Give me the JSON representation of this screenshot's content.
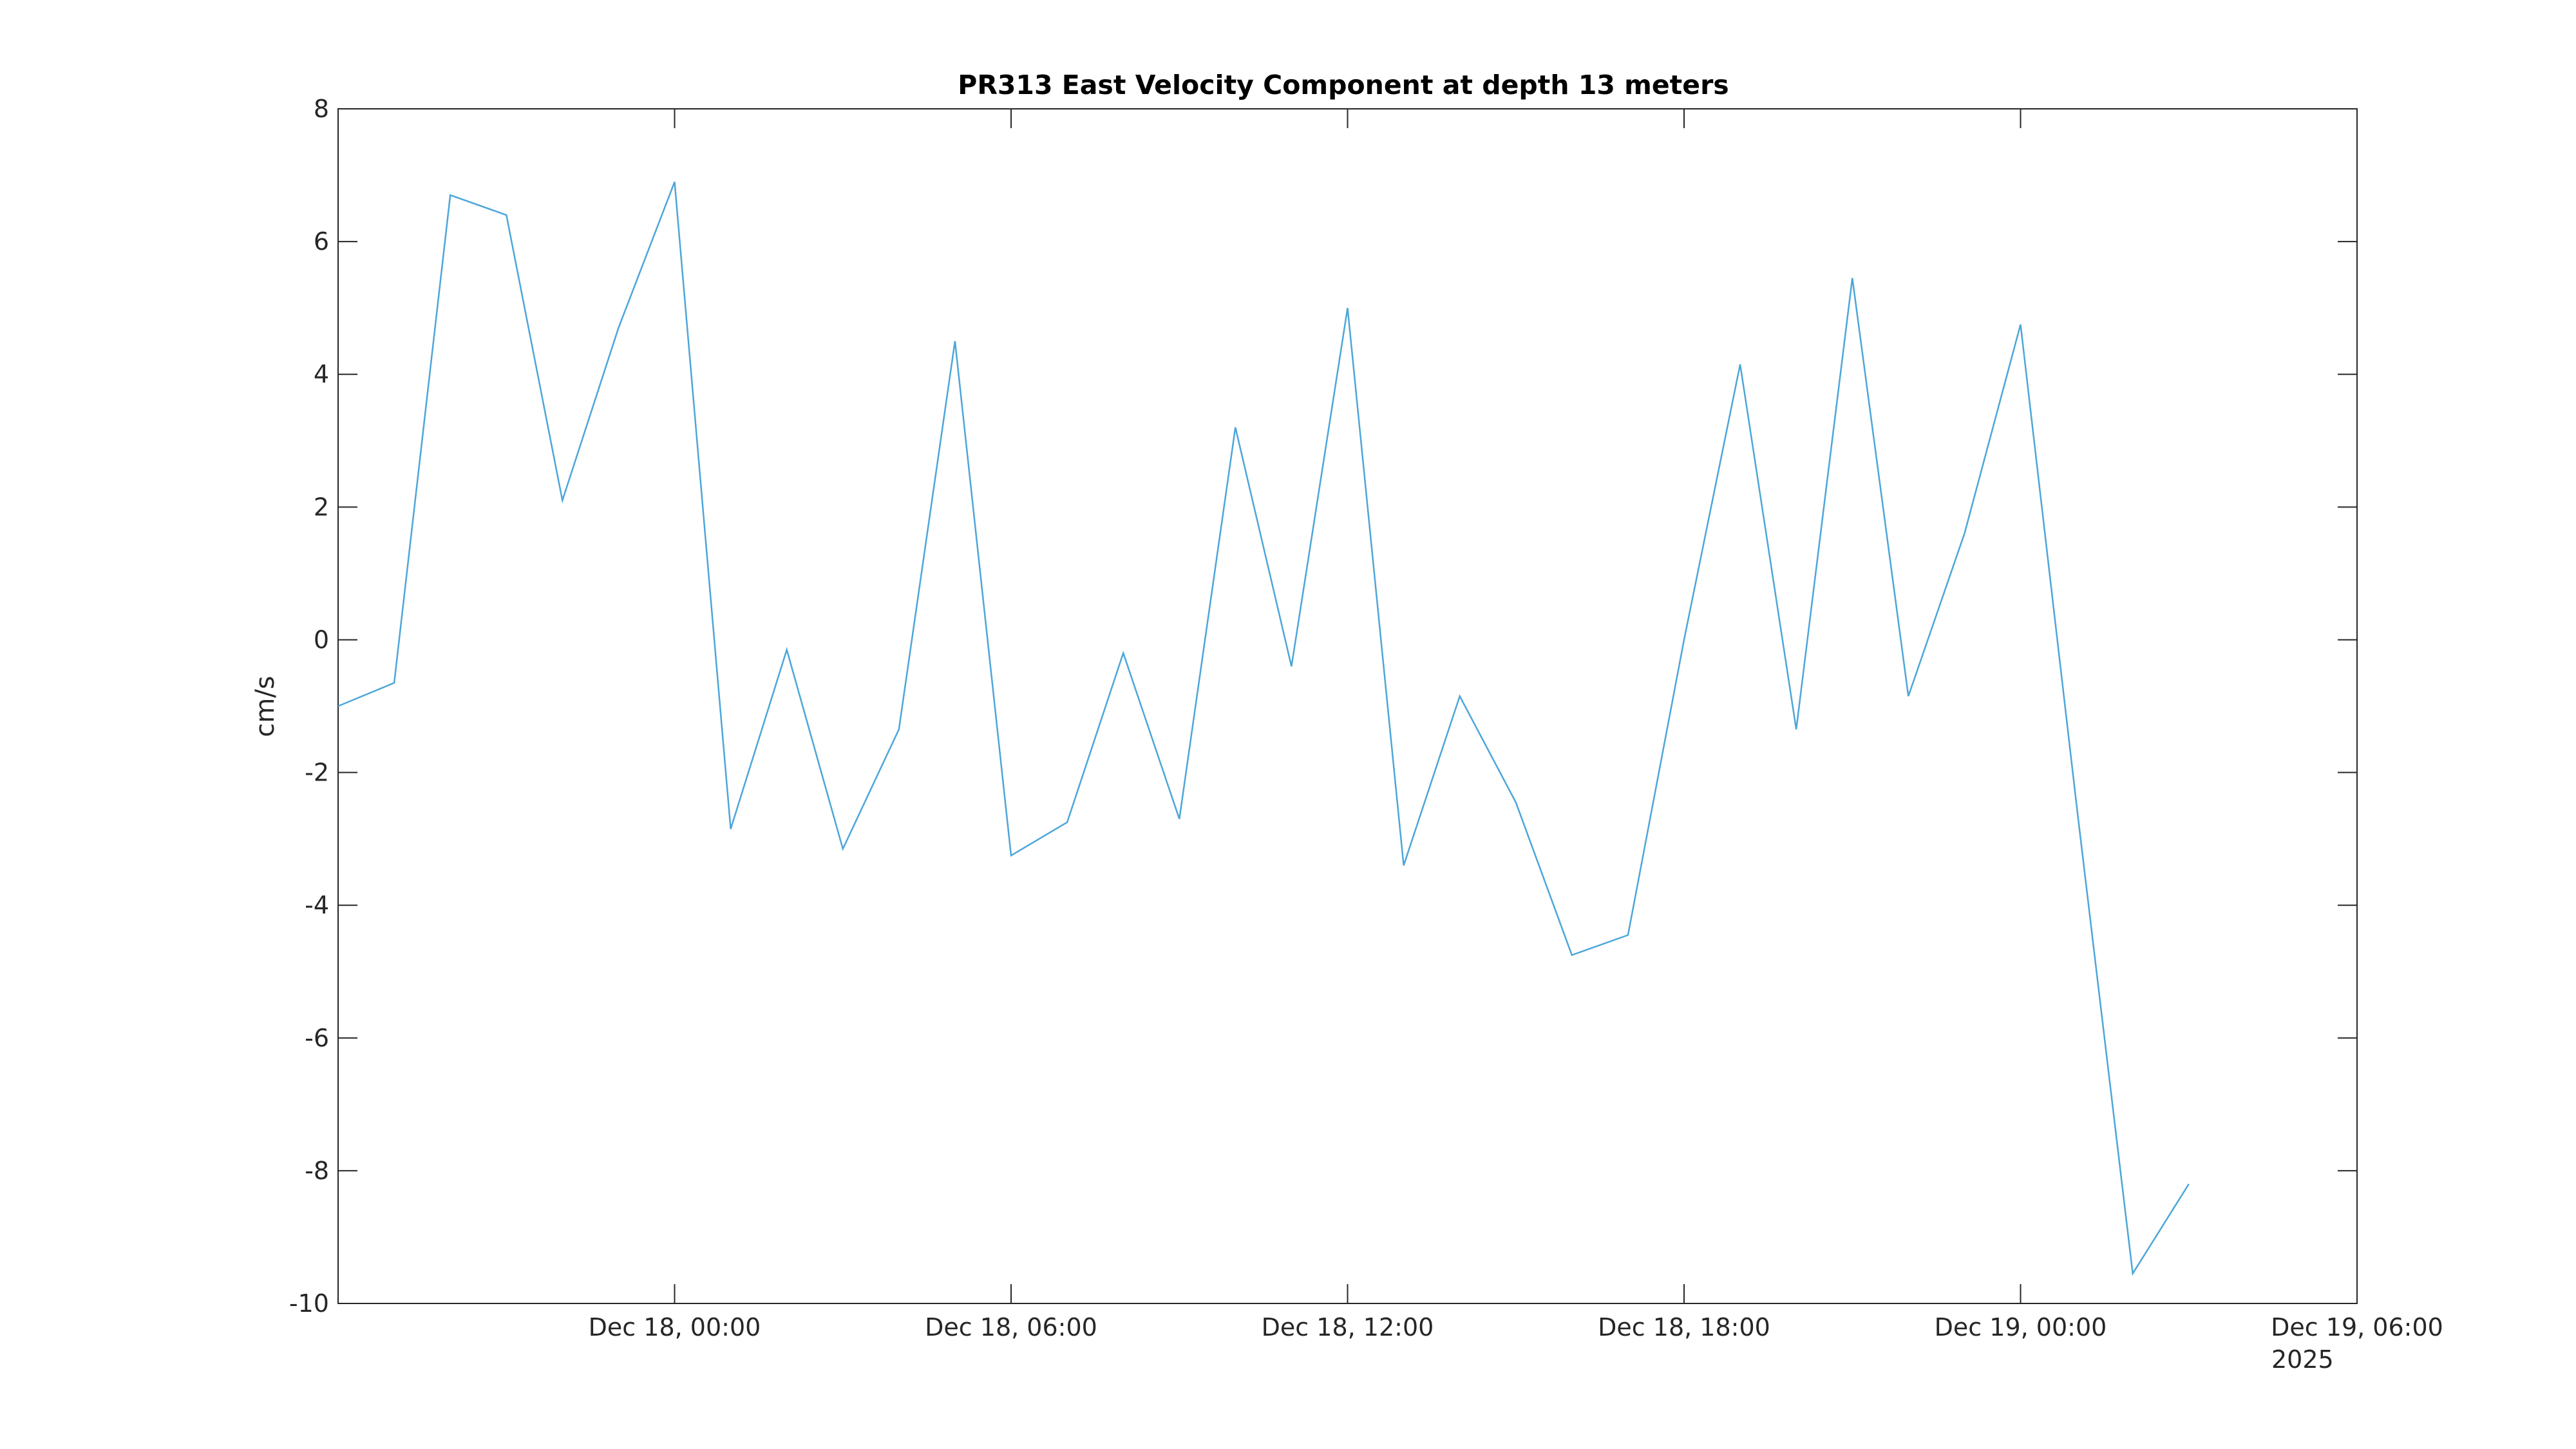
{
  "chart_data": {
    "type": "line",
    "title": "PR313 East Velocity Component at depth 13 meters",
    "xlabel": "",
    "ylabel": "cm/s",
    "ylim": [
      -10,
      8
    ],
    "yticks": [
      "8",
      "6",
      "4",
      "2",
      "0",
      "-2",
      "-4",
      "-6",
      "-8",
      "-10"
    ],
    "xlim": [
      "2025-12-17 18:00",
      "2025-12-19 06:00"
    ],
    "xticks": [
      {
        "x": "2025-12-18 00:00",
        "label": "Dec 18, 00:00"
      },
      {
        "x": "2025-12-18 06:00",
        "label": "Dec 18, 06:00"
      },
      {
        "x": "2025-12-18 12:00",
        "label": "Dec 18, 12:00"
      },
      {
        "x": "2025-12-18 18:00",
        "label": "Dec 18, 18:00"
      },
      {
        "x": "2025-12-19 00:00",
        "label": "Dec 19, 00:00"
      },
      {
        "x": "2025-12-19 06:00",
        "label": "Dec 19, 06:00"
      }
    ],
    "year_label": "2025",
    "grid": false,
    "series": [
      {
        "color": "#4DA6D9",
        "x": [
          "2025-12-17 18:00",
          "2025-12-17 19:00",
          "2025-12-17 20:00",
          "2025-12-17 21:00",
          "2025-12-17 22:00",
          "2025-12-17 23:00",
          "2025-12-18 00:00",
          "2025-12-18 01:00",
          "2025-12-18 02:00",
          "2025-12-18 03:00",
          "2025-12-18 04:00",
          "2025-12-18 05:00",
          "2025-12-18 06:00",
          "2025-12-18 07:00",
          "2025-12-18 08:00",
          "2025-12-18 09:00",
          "2025-12-18 10:00",
          "2025-12-18 11:00",
          "2025-12-18 12:00",
          "2025-12-18 13:00",
          "2025-12-18 14:00",
          "2025-12-18 15:00",
          "2025-12-18 16:00",
          "2025-12-18 17:00",
          "2025-12-18 18:00",
          "2025-12-18 19:00",
          "2025-12-18 20:00",
          "2025-12-18 21:00",
          "2025-12-18 22:00",
          "2025-12-18 23:00",
          "2025-12-19 00:00",
          "2025-12-19 01:00",
          "2025-12-19 02:00",
          "2025-12-19 03:00",
          "2025-12-19 04:00",
          "2025-12-19 05:00",
          "2025-12-19 06:00"
        ],
        "y": [
          -1.0,
          -0.65,
          6.7,
          6.4,
          2.1,
          4.7,
          6.9,
          -2.85,
          -0.15,
          -3.15,
          -1.35,
          4.5,
          -3.25,
          -2.75,
          -0.2,
          -2.7,
          3.2,
          -0.4,
          5.0,
          -3.4,
          -0.85,
          -2.45,
          -4.75,
          -4.45,
          0.0,
          4.15,
          -1.35,
          5.45,
          -0.85,
          1.6,
          4.75,
          -2.5,
          -9.55,
          -8.2,
          null,
          null,
          null
        ]
      }
    ]
  }
}
